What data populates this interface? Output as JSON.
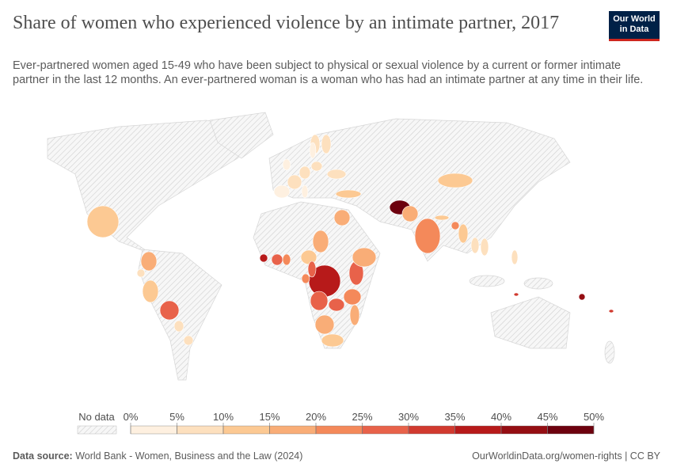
{
  "header": {
    "title": "Share of women who experienced violence by an intimate partner, 2017",
    "subtitle": "Ever-partnered women aged 15-49 who have been subject to physical or sexual violence by a current or former intimate partner in the last 12 months. An ever-partnered woman is a woman who has had an intimate partner at any time in their life.",
    "logo": [
      "Our World",
      "in Data"
    ]
  },
  "map": {
    "legend": {
      "no_data_label": "No data",
      "ticks": [
        {
          "value": 0,
          "label": "0%"
        },
        {
          "value": 5,
          "label": "5%"
        },
        {
          "value": 10,
          "label": "10%"
        },
        {
          "value": 15,
          "label": "15%"
        },
        {
          "value": 20,
          "label": "20%"
        },
        {
          "value": 25,
          "label": "25%"
        },
        {
          "value": 30,
          "label": "30%"
        },
        {
          "value": 35,
          "label": "35%"
        },
        {
          "value": 40,
          "label": "40%"
        },
        {
          "value": 45,
          "label": "45%"
        },
        {
          "value": 50,
          "label": "50%"
        }
      ],
      "colors": [
        "#fef0e0",
        "#fde0be",
        "#fcc993",
        "#f9ad77",
        "#f4895a",
        "#e8624a",
        "#d13a2f",
        "#b71a1a",
        "#950e13",
        "#6d010e"
      ]
    },
    "values": [
      46,
      22,
      16,
      23,
      11,
      11,
      11,
      9,
      8,
      6,
      36,
      26,
      17,
      24,
      27,
      25,
      16,
      19,
      12,
      14,
      26,
      27,
      35,
      20,
      15,
      22,
      12,
      10,
      18,
      10,
      27,
      6,
      5,
      8,
      3,
      5,
      7,
      4,
      6,
      8,
      6,
      9,
      3,
      4,
      30,
      40,
      30,
      16
    ]
  },
  "footer": {
    "source_label": "Data source:",
    "source": "World Bank - Women, Business and the Law (2024)",
    "url": "OurWorldinData.org/women-rights | CC BY"
  }
}
